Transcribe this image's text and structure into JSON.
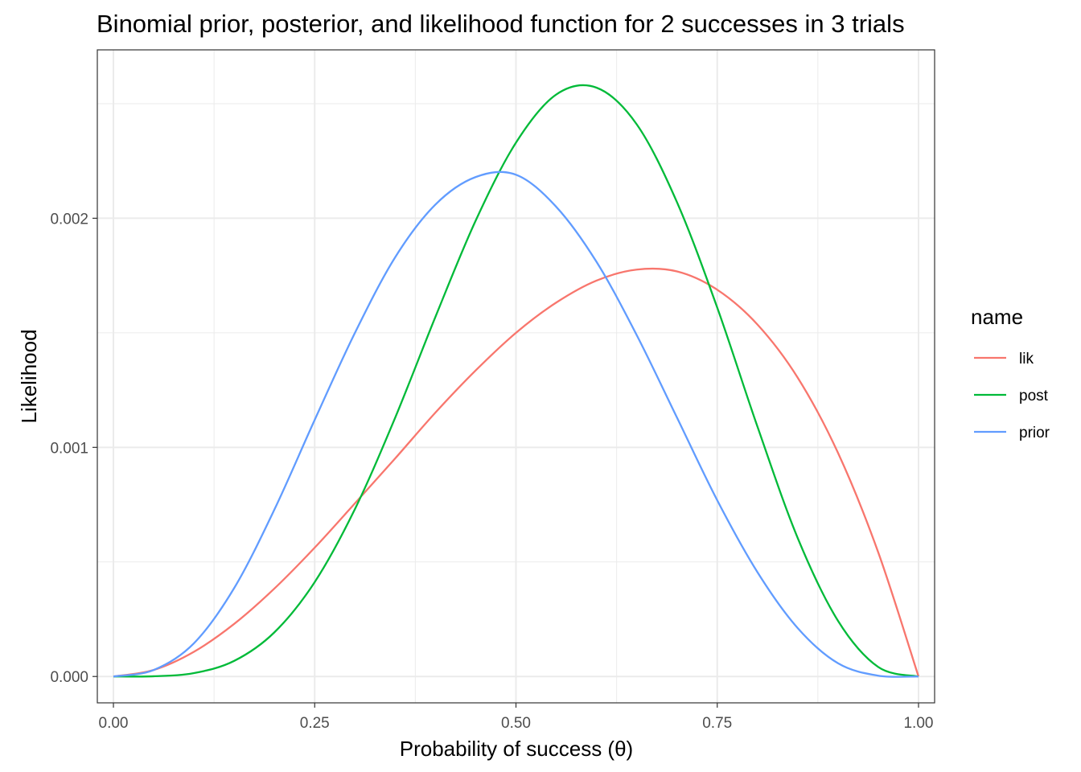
{
  "chart_data": {
    "type": "line",
    "title": "Binomial prior, posterior, and likelihood function for 2 successes in 3 trials",
    "xlabel": "Probability of success (θ)",
    "ylabel": "Likelihood",
    "xlim": [
      -0.02,
      1.02
    ],
    "ylim": [
      -0.000115,
      0.002735
    ],
    "x_ticks": [
      0.0,
      0.25,
      0.5,
      0.75,
      1.0
    ],
    "x_tick_labels": [
      "0.00",
      "0.25",
      "0.50",
      "0.75",
      "1.00"
    ],
    "y_ticks": [
      0.0,
      0.001,
      0.002
    ],
    "y_tick_labels": [
      "0.000",
      "0.001",
      "0.002"
    ],
    "x_minor_ticks": [
      0.125,
      0.375,
      0.625,
      0.875
    ],
    "y_minor_ticks": [
      0.0005,
      0.0015,
      0.0025
    ],
    "grid": true,
    "legend": {
      "title": "name",
      "position": "right"
    },
    "x": [
      0.0,
      0.05,
      0.1,
      0.15,
      0.2,
      0.25,
      0.3,
      0.35,
      0.4,
      0.45,
      0.5,
      0.55,
      0.6,
      0.65,
      0.7,
      0.75,
      0.8,
      0.85,
      0.9,
      0.95,
      1.0
    ],
    "series": [
      {
        "name": "lik",
        "color": "#F8766D",
        "values": [
          0.0,
          3.57e-05,
          0.000135,
          0.000287,
          0.00048,
          0.000703,
          0.000945,
          0.00119,
          0.00144,
          0.00167,
          0.001875,
          0.00204,
          0.00216,
          0.00222,
          0.00221,
          0.00211,
          0.00192,
          0.00163,
          0.00122,
          0.000677,
          0.0
        ],
        "display_scale": 0.8
      },
      {
        "name": "post",
        "color": "#00BA38",
        "values": [
          0.0,
          1.02e-06,
          1.49e-05,
          6.81e-05,
          0.000193,
          0.000412,
          0.000731,
          0.00113,
          0.00157,
          0.00199,
          0.00233,
          0.00254,
          0.00257,
          0.00241,
          0.00207,
          0.00161,
          0.00109,
          0.000604,
          0.000243,
          4.13e-05,
          0.0
        ]
      },
      {
        "name": "prior",
        "color": "#619CFF",
        "values": [
          0.0,
          2.84e-05,
          0.000145,
          0.000386,
          0.000729,
          0.00112,
          0.0015,
          0.00183,
          0.00206,
          0.00218,
          0.00219,
          0.00205,
          0.00181,
          0.00149,
          0.00113,
          0.000769,
          0.000455,
          0.000211,
          5.78e-05,
          3.63e-06,
          0.0
        ]
      }
    ]
  }
}
